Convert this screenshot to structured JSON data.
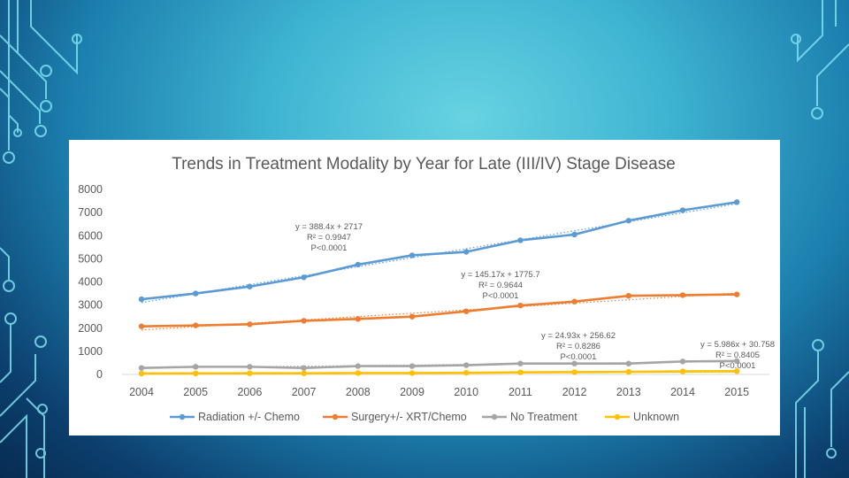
{
  "chart_data": {
    "type": "line",
    "title": "Trends in Treatment Modality by Year for Late (III/IV) Stage Disease",
    "categories": [
      "2004",
      "2005",
      "2006",
      "2007",
      "2008",
      "2009",
      "2010",
      "2011",
      "2012",
      "2013",
      "2014",
      "2015"
    ],
    "ylim": [
      0,
      8000
    ],
    "yticks": [
      0,
      1000,
      2000,
      3000,
      4000,
      5000,
      6000,
      7000,
      8000
    ],
    "ytick_labels": [
      "0",
      "1000",
      "2000",
      "3000",
      "4000",
      "5000",
      "6000",
      "7000",
      "8000"
    ],
    "grid": false,
    "legend_position": "bottom",
    "series": [
      {
        "name": "Radiation +/- Chemo",
        "color": "#5b9bd5",
        "values": [
          3250,
          3500,
          3800,
          4200,
          4750,
          5150,
          5300,
          5800,
          6050,
          6650,
          7100,
          7450
        ],
        "trend": {
          "slope": 388.4,
          "intercept": 2717
        },
        "annotation": [
          "y = 388.4x + 2717",
          "R² = 0.9947",
          "P<0.0001"
        ]
      },
      {
        "name": "Surgery+/- XRT/Chemo",
        "color": "#ed7d31",
        "values": [
          2080,
          2120,
          2170,
          2320,
          2400,
          2500,
          2730,
          2980,
          3150,
          3400,
          3430,
          3460
        ],
        "trend": {
          "slope": 145.17,
          "intercept": 1775.7
        },
        "annotation": [
          "y = 145.17x + 1775.7",
          "R² = 0.9644",
          "P<0.0001"
        ]
      },
      {
        "name": "No Treatment",
        "color": "#a5a5a5",
        "values": [
          280,
          330,
          330,
          280,
          360,
          360,
          400,
          470,
          470,
          470,
          560,
          580
        ],
        "trend": {
          "slope": 24.93,
          "intercept": 256.62
        },
        "annotation": [
          "y = 24.93x + 256.62",
          "R² = 0.8286",
          "P<0.0001"
        ]
      },
      {
        "name": "Unknown",
        "color": "#ffc000",
        "values": [
          40,
          45,
          50,
          50,
          60,
          60,
          70,
          90,
          100,
          110,
          130,
          140
        ],
        "trend": {
          "slope": 5.986,
          "intercept": 30.758
        },
        "annotation": [
          "y = 5.986x + 30.758",
          "R² = 0.8405",
          "P<0.0001"
        ]
      }
    ]
  }
}
